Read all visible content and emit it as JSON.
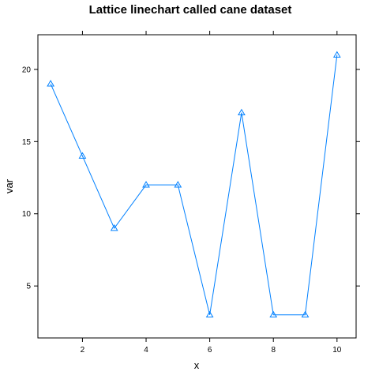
{
  "chart_data": {
    "type": "line",
    "title": "Lattice linechart called cane dataset",
    "xlabel": "x",
    "ylabel": "var",
    "x": [
      1,
      2,
      3,
      4,
      5,
      6,
      7,
      8,
      9,
      10
    ],
    "series": [
      {
        "values": [
          19,
          14,
          9,
          12,
          12,
          3,
          17,
          3,
          3,
          21
        ],
        "color": "#0080ff",
        "marker": "open-triangle"
      }
    ],
    "xticks": [
      2,
      4,
      6,
      8,
      10
    ],
    "yticks": [
      5,
      10,
      15,
      20
    ],
    "xlim": [
      0.6,
      10.6
    ],
    "ylim": [
      1.4,
      22.4
    ],
    "grid": false,
    "legend": "none",
    "frame_color": "#000000"
  }
}
